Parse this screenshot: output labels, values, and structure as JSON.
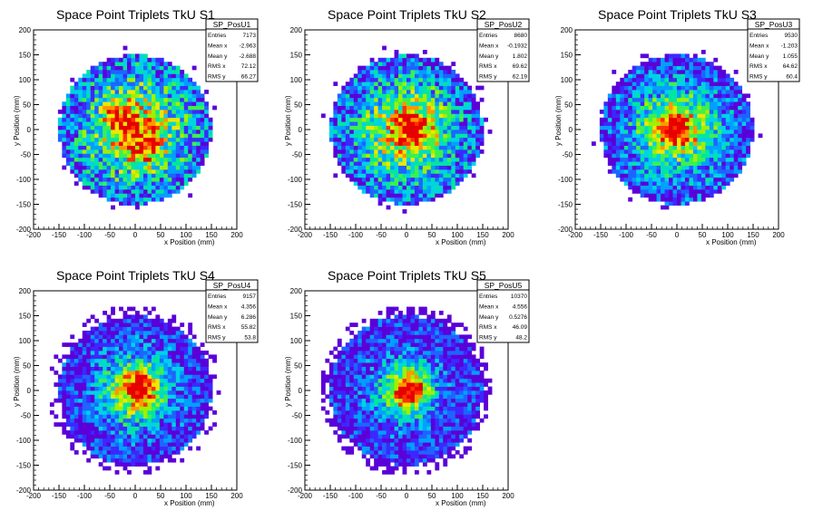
{
  "chart_data": [
    {
      "type": "heatmap",
      "name": "SP_PosU1",
      "title": "Space Point Triplets TkU S1",
      "xlabel": "x Position (mm)",
      "ylabel": "y Position (mm)",
      "xlim": [
        -200,
        200
      ],
      "ylim": [
        -200,
        200
      ],
      "xticks": [
        -200,
        -150,
        -100,
        -50,
        0,
        50,
        100,
        150,
        200
      ],
      "yticks": [
        -200,
        -150,
        -100,
        -50,
        0,
        50,
        100,
        150,
        200
      ],
      "stats": [
        [
          "Entries",
          "7173"
        ],
        [
          "Mean x",
          "-2.963"
        ],
        [
          "Mean y",
          "-2.688"
        ],
        [
          "RMS x",
          "72.12"
        ],
        [
          "RMS y",
          "66.27"
        ]
      ],
      "distribution": {
        "radius": 150,
        "sigma": 80,
        "hotspots": [
          [
            -30,
            20
          ],
          [
            20,
            -35
          ]
        ],
        "noise": 0.55,
        "halo": 0.05,
        "seed": 11
      }
    },
    {
      "type": "heatmap",
      "name": "SP_PosU2",
      "title": "Space Point Triplets TkU S2",
      "xlabel": "x Position (mm)",
      "ylabel": "y Position (mm)",
      "xlim": [
        -200,
        200
      ],
      "ylim": [
        -200,
        200
      ],
      "xticks": [
        -200,
        -150,
        -100,
        -50,
        0,
        50,
        100,
        150,
        200
      ],
      "yticks": [
        -200,
        -150,
        -100,
        -50,
        0,
        50,
        100,
        150,
        200
      ],
      "stats": [
        [
          "Entries",
          "8680"
        ],
        [
          "Mean x",
          "-0.1932"
        ],
        [
          "Mean y",
          "1.802"
        ],
        [
          "RMS x",
          "69.62"
        ],
        [
          "RMS y",
          "62.19"
        ]
      ],
      "distribution": {
        "radius": 150,
        "sigma": 75,
        "hotspots": [
          [
            15,
            0
          ]
        ],
        "noise": 0.5,
        "halo": 0.05,
        "seed": 23
      }
    },
    {
      "type": "heatmap",
      "name": "SP_PosU3",
      "title": "Space Point Triplets TkU S3",
      "xlabel": "x Position (mm)",
      "ylabel": "y Position (mm)",
      "xlim": [
        -200,
        200
      ],
      "ylim": [
        -200,
        200
      ],
      "xticks": [
        -200,
        -150,
        -100,
        -50,
        0,
        50,
        100,
        150,
        200
      ],
      "yticks": [
        -200,
        -150,
        -100,
        -50,
        0,
        50,
        100,
        150,
        200
      ],
      "stats": [
        [
          "Entries",
          "9530"
        ],
        [
          "Mean x",
          "-1.203"
        ],
        [
          "Mean y",
          "1.055"
        ],
        [
          "RMS x",
          "64.62"
        ],
        [
          "RMS y",
          "60.4"
        ]
      ],
      "distribution": {
        "radius": 150,
        "sigma": 62,
        "hotspots": [
          [
            -5,
            0
          ]
        ],
        "noise": 0.45,
        "halo": 0.05,
        "seed": 37
      }
    },
    {
      "type": "heatmap",
      "name": "SP_PosU4",
      "title": "Space Point Triplets TkU S4",
      "xlabel": "x Position (mm)",
      "ylabel": "y Position (mm)",
      "xlim": [
        -200,
        200
      ],
      "ylim": [
        -200,
        200
      ],
      "xticks": [
        -200,
        -150,
        -100,
        -50,
        0,
        50,
        100,
        150,
        200
      ],
      "yticks": [
        -200,
        -150,
        -100,
        -50,
        0,
        50,
        100,
        150,
        200
      ],
      "stats": [
        [
          "Entries",
          "9157"
        ],
        [
          "Mean x",
          "4.356"
        ],
        [
          "Mean y",
          "6.286"
        ],
        [
          "RMS x",
          "55.82"
        ],
        [
          "RMS y",
          "53.8"
        ]
      ],
      "distribution": {
        "radius": 150,
        "sigma": 50,
        "hotspots": [
          [
            10,
            5
          ]
        ],
        "noise": 0.4,
        "halo": 0.25,
        "seed": 51
      }
    },
    {
      "type": "heatmap",
      "name": "SP_PosU5",
      "title": "Space Point Triplets TkU S5",
      "xlabel": "x Position (mm)",
      "ylabel": "y Position (mm)",
      "xlim": [
        -200,
        200
      ],
      "ylim": [
        -200,
        200
      ],
      "xticks": [
        -200,
        -150,
        -100,
        -50,
        0,
        50,
        100,
        150,
        200
      ],
      "yticks": [
        -200,
        -150,
        -100,
        -50,
        0,
        50,
        100,
        150,
        200
      ],
      "stats": [
        [
          "Entries",
          "10370"
        ],
        [
          "Mean x",
          "4.556"
        ],
        [
          "Mean y",
          "0.5276"
        ],
        [
          "RMS x",
          "46.09"
        ],
        [
          "RMS y",
          "48.2"
        ]
      ],
      "distribution": {
        "radius": 150,
        "sigma": 42,
        "hotspots": [
          [
            5,
            0
          ]
        ],
        "noise": 0.4,
        "halo": 0.45,
        "seed": 67
      }
    }
  ],
  "colors": {
    "palette": [
      "#5a00d8",
      "#3c28ff",
      "#1e64ff",
      "#00a0ff",
      "#00d2e6",
      "#00e6a0",
      "#3cf050",
      "#a0f000",
      "#f0e600",
      "#ff9600",
      "#ff3200",
      "#e60000"
    ],
    "frame": "#000000",
    "background": "#ffffff"
  }
}
